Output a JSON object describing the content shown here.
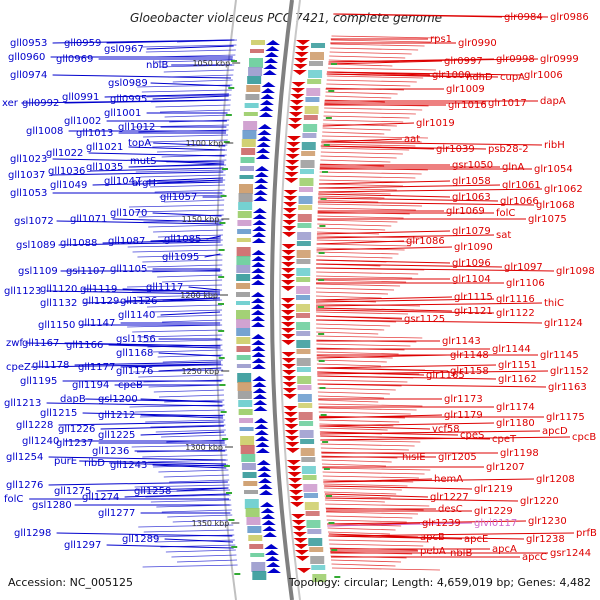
{
  "title": "Gloeobacter violaceus PCC 7421, complete genome",
  "footer": {
    "accession": "Accession: NC_005125",
    "topology": "Topology: circular; Length: 4,659,019 bp; Genes: 4,482"
  },
  "colors": {
    "left_strand": "#0000cc",
    "right_strand": "#dd0000",
    "pseudo": "#cc66cc",
    "backbone": "#888888"
  },
  "kbp_ticks": [
    "1050 kbp",
    "1100 kbp",
    "1150 kbp",
    "1200 kbp",
    "1250 kbp",
    "1300 kbp",
    "1350 kbp"
  ],
  "left_labels": [
    "gll0953",
    "gll0959",
    "gll0960",
    "gsl0967",
    "gll0969",
    "nblB",
    "gll0974",
    "gsl0989",
    "gll0991",
    "xer",
    "gll0992",
    "gll0995",
    "gll1001",
    "gll1002",
    "gll1008",
    "gll1013",
    "gll1012",
    "topA",
    "gll1021",
    "gll1023",
    "gll1022",
    "mutS",
    "gll1037",
    "gll1036",
    "gll1035",
    "gll1049",
    "gll1047",
    "argH",
    "gll1053",
    "gll1057",
    "gsl1072",
    "gll1071",
    "gll1070",
    "gsl1089",
    "gll1088",
    "gll1087",
    "gll1085",
    "gll1095",
    "gsl1109",
    "gsl1107",
    "gll1105",
    "gll1123",
    "gll1120",
    "gll1119",
    "gll1117",
    "gll1132",
    "gll1129",
    "gll1126",
    "gll1140",
    "gll1150",
    "gll1147",
    "zwf",
    "gll1167",
    "gll1166",
    "gsl1156",
    "gll1168",
    "cpeZ",
    "gll1178",
    "gll1177",
    "gll1176",
    "gll1195",
    "gll1194",
    "cpeB",
    "gll1213",
    "dapB",
    "gsl1200",
    "gll1215",
    "gll1212",
    "gll1228",
    "gll1226",
    "gll1225",
    "gll1240",
    "gll1237",
    "gll1236",
    "gll1254",
    "purE",
    "ribD",
    "gll1243",
    "gll1276",
    "gll1275",
    "gll1274",
    "gll1258",
    "folC",
    "gsl1280",
    "gll1277",
    "gll1298",
    "gll1297",
    "gll1289"
  ],
  "right_labels": [
    "glr0984",
    "glr0986",
    "rps1",
    "glr0990",
    "glr0997",
    "glr0998",
    "glr0999",
    "glr1000",
    "ndhD",
    "cupA",
    "glr1006",
    "glr1009",
    "glr1016",
    "glr1017",
    "dapA",
    "glr1019",
    "aat",
    "glr1039",
    "psb28-2",
    "ribH",
    "gsr1050",
    "glnA",
    "glr1054",
    "glr1058",
    "glr1061",
    "glr1062",
    "glr1063",
    "glr1066",
    "glr1068",
    "glr1069",
    "folC",
    "glr1075",
    "glr1079",
    "sat",
    "glr1086",
    "glr1090",
    "glr1096",
    "glr1097",
    "glr1098",
    "glr1104",
    "glr1106",
    "glr1115",
    "glr1116",
    "thiC",
    "glr1121",
    "glr1122",
    "gsr1125",
    "glr1124",
    "glr1143",
    "glr1144",
    "glr1148",
    "glr1145",
    "glr1151",
    "glr1158",
    "glr1152",
    "glr1165",
    "glr1162",
    "glr1163",
    "glr1173",
    "glr1174",
    "glr1179",
    "glr1175",
    "vcf58",
    "glr1180",
    "apcD",
    "cpcB",
    "cpeS",
    "cpeT",
    "hisIE",
    "glr1205",
    "glr1198",
    "glr1207",
    "hemA",
    "glr1208",
    "glr1219",
    "glr1227",
    "glr1220",
    "desC",
    "glr1229",
    "glr1239",
    "glvi0117",
    "glr1230",
    "prfB",
    "apcB",
    "apcE",
    "glr1238",
    "pebA",
    "nblB",
    "apcA",
    "apcC",
    "gsr1244"
  ]
}
